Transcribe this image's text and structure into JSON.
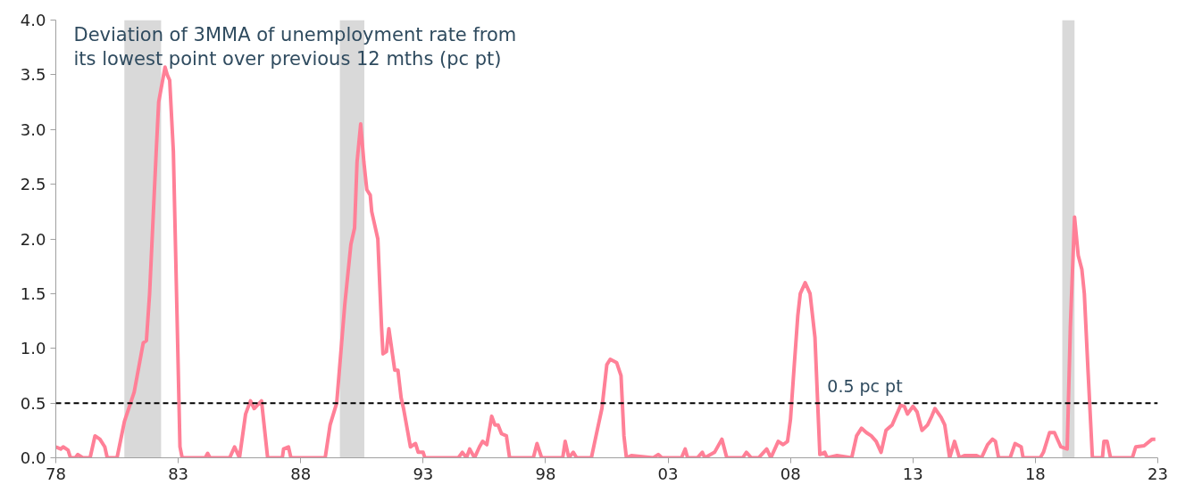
{
  "chart_data": {
    "type": "line",
    "title": "Deviation of 3MMA of unemployment rate from\nits lowest point over previous 12 mths (pc pt)",
    "x": [
      1978.0,
      1978.2,
      1978.3,
      1978.5,
      1978.6,
      1978.8,
      1978.9,
      1979.1,
      1979.4,
      1979.6,
      1979.8,
      1980.0,
      1980.1,
      1980.5,
      1980.8,
      1981.2,
      1981.57,
      1981.7,
      1981.83,
      1982.1,
      1982.2,
      1982.28,
      1982.46,
      1982.55,
      1982.65,
      1982.8,
      1982.95,
      1983.07,
      1983.16,
      1984.1,
      1984.2,
      1984.3,
      1985.1,
      1985.3,
      1985.5,
      1985.75,
      1985.95,
      1986.1,
      1986.4,
      1986.65,
      1987.25,
      1987.3,
      1987.5,
      1987.6,
      1989.0,
      1989.2,
      1989.47,
      1989.8,
      1990.05,
      1990.2,
      1990.3,
      1990.45,
      1990.58,
      1990.7,
      1990.84,
      1990.9,
      1991.15,
      1991.3,
      1991.36,
      1991.5,
      1991.6,
      1991.84,
      1991.97,
      1992.1,
      1992.2,
      1992.48,
      1992.69,
      1992.8,
      1993.0,
      1993.07,
      1994.44,
      1994.6,
      1994.77,
      1994.9,
      1995.1,
      1995.3,
      1995.43,
      1995.6,
      1995.8,
      1995.93,
      1996.06,
      1996.2,
      1996.4,
      1996.53,
      1997.5,
      1997.65,
      1997.84,
      1998.7,
      1998.8,
      1998.95,
      1999.13,
      1999.27,
      1999.87,
      2000.06,
      2000.3,
      2000.5,
      2000.64,
      2000.9,
      2001.08,
      2001.2,
      2001.3,
      2001.5,
      2002.4,
      2002.6,
      2002.75,
      2003.55,
      2003.7,
      2003.8,
      2004.2,
      2004.4,
      2004.5,
      2004.9,
      2005.2,
      2005.4,
      2006.05,
      2006.2,
      2006.4,
      2006.7,
      2007.03,
      2007.2,
      2007.5,
      2007.7,
      2007.88,
      2008.0,
      2008.14,
      2008.3,
      2008.4,
      2008.6,
      2008.8,
      2009.0,
      2009.13,
      2009.2,
      2009.4,
      2009.5,
      2009.9,
      2010.5,
      2010.7,
      2010.9,
      2011.1,
      2011.3,
      2011.5,
      2011.7,
      2011.9,
      2012.0,
      2012.15,
      2012.5,
      2012.65,
      2012.78,
      2013.0,
      2013.17,
      2013.37,
      2013.6,
      2013.77,
      2013.9,
      2014.15,
      2014.3,
      2014.5,
      2014.7,
      2014.9,
      2015.1,
      2015.6,
      2015.8,
      2016.05,
      2016.25,
      2016.37,
      2016.5,
      2016.97,
      2017.17,
      2017.42,
      2017.5,
      2018.2,
      2018.33,
      2018.58,
      2018.78,
      2019.04,
      2019.3,
      2019.43,
      2019.6,
      2019.75,
      2019.9,
      2020.0,
      2020.15,
      2020.33,
      2020.74,
      2020.8,
      2020.93,
      2021.07,
      2021.96,
      2022.1,
      2022.44,
      2022.77,
      2022.9
    ],
    "series": [
      {
        "color": "#ff8097",
        "values": [
          0.1,
          0.08,
          0.1,
          0.07,
          0.0,
          0.0,
          0.03,
          0.0,
          0.0,
          0.2,
          0.17,
          0.1,
          0.0,
          0.0,
          0.33,
          0.6,
          1.05,
          1.07,
          1.5,
          2.8,
          3.25,
          3.35,
          3.57,
          3.5,
          3.45,
          2.8,
          1.3,
          0.1,
          0.0,
          0.0,
          0.04,
          0.0,
          0.0,
          0.1,
          0.0,
          0.4,
          0.52,
          0.45,
          0.52,
          0.0,
          0.0,
          0.08,
          0.1,
          0.0,
          0.0,
          0.3,
          0.5,
          1.4,
          1.95,
          2.1,
          2.7,
          3.05,
          2.7,
          2.45,
          2.4,
          2.25,
          2.0,
          1.2,
          0.95,
          0.97,
          1.18,
          0.8,
          0.8,
          0.55,
          0.45,
          0.1,
          0.13,
          0.05,
          0.05,
          0.0,
          0.0,
          0.05,
          0.0,
          0.08,
          0.0,
          0.1,
          0.15,
          0.12,
          0.38,
          0.3,
          0.3,
          0.22,
          0.2,
          0.0,
          0.0,
          0.13,
          0.0,
          0.0,
          0.15,
          0.0,
          0.05,
          0.0,
          0.0,
          0.2,
          0.45,
          0.85,
          0.9,
          0.87,
          0.75,
          0.2,
          0.0,
          0.02,
          0.0,
          0.03,
          0.0,
          0.0,
          0.08,
          0.0,
          0.0,
          0.05,
          0.0,
          0.05,
          0.17,
          0.0,
          0.0,
          0.05,
          0.0,
          0.0,
          0.08,
          0.0,
          0.15,
          0.12,
          0.15,
          0.35,
          0.8,
          1.3,
          1.5,
          1.6,
          1.5,
          1.1,
          0.4,
          0.03,
          0.05,
          0.0,
          0.02,
          0.0,
          0.2,
          0.27,
          0.23,
          0.2,
          0.15,
          0.05,
          0.25,
          0.27,
          0.3,
          0.48,
          0.47,
          0.4,
          0.47,
          0.42,
          0.25,
          0.3,
          0.38,
          0.45,
          0.37,
          0.3,
          0.0,
          0.15,
          0.0,
          0.02,
          0.02,
          0.0,
          0.12,
          0.17,
          0.15,
          0.0,
          0.0,
          0.13,
          0.1,
          0.0,
          0.0,
          0.05,
          0.23,
          0.23,
          0.1,
          0.08,
          1.2,
          2.2,
          1.85,
          1.72,
          1.5,
          0.8,
          0.0,
          0.0,
          0.15,
          0.15,
          0.0,
          0.0,
          0.1,
          0.11,
          0.17,
          0.17
        ]
      }
    ],
    "xlim": [
      1978,
      2023
    ],
    "xticks": [
      {
        "value": 1978,
        "label": "78"
      },
      {
        "value": 1983,
        "label": "83"
      },
      {
        "value": 1988,
        "label": "88"
      },
      {
        "value": 1993,
        "label": "93"
      },
      {
        "value": 1998,
        "label": "98"
      },
      {
        "value": 2003,
        "label": "03"
      },
      {
        "value": 2008,
        "label": "08"
      },
      {
        "value": 2013,
        "label": "13"
      },
      {
        "value": 2018,
        "label": "18"
      },
      {
        "value": 2023,
        "label": "23"
      }
    ],
    "ylim": [
      0,
      4
    ],
    "yticks": [
      {
        "value": 0,
        "label": "0.0"
      },
      {
        "value": 0.5,
        "label": "0.5"
      },
      {
        "value": 1,
        "label": "1.0"
      },
      {
        "value": 1.5,
        "label": "1.5"
      },
      {
        "value": 2,
        "label": "2.0"
      },
      {
        "value": 2.5,
        "label": "2.5"
      },
      {
        "value": 3,
        "label": "3.0"
      },
      {
        "value": 3.5,
        "label": "3.5"
      },
      {
        "value": 4,
        "label": "4.0"
      }
    ],
    "ref_lines": [
      {
        "axis": "y",
        "value": 0.5,
        "label": "0.5 pc pt",
        "color": "#000000",
        "line_style": "dashed"
      }
    ],
    "bands": [
      {
        "axis": "x",
        "from": 1980.8,
        "to": 1982.3,
        "color": "#d9d9d9"
      },
      {
        "axis": "x",
        "from": 1989.6,
        "to": 1990.6,
        "color": "#d9d9d9"
      },
      {
        "axis": "x",
        "from": 2019.1,
        "to": 2019.6,
        "color": "#d9d9d9"
      }
    ],
    "grid": false,
    "marker": "none",
    "line_style": "solid"
  }
}
